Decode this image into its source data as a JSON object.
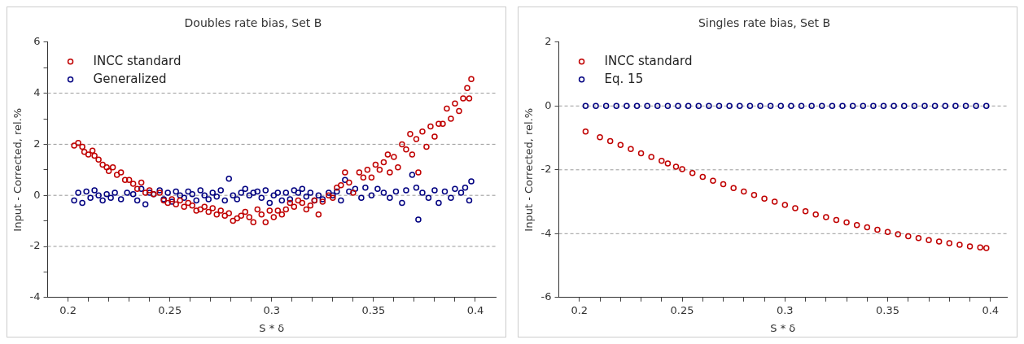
{
  "chart_data": [
    {
      "type": "scatter",
      "title": "Doubles rate bias, Set B",
      "xlabel": "S * δ",
      "ylabel": "Input - Corrected, rel.%",
      "xlim": [
        0.19,
        0.41
      ],
      "ylim": [
        -4,
        6
      ],
      "xticks": [
        0.2,
        {
          "value": 0.21,
          "label": null
        },
        {
          "value": 0.22,
          "label": null
        },
        {
          "value": 0.23,
          "label": null
        },
        {
          "value": 0.24,
          "label": null
        },
        0.25,
        {
          "value": 0.26,
          "label": null
        },
        {
          "value": 0.27,
          "label": null
        },
        {
          "value": 0.28,
          "label": null
        },
        {
          "value": 0.29,
          "label": null
        },
        0.3,
        {
          "value": 0.31,
          "label": null
        },
        {
          "value": 0.32,
          "label": null
        },
        {
          "value": 0.33,
          "label": null
        },
        {
          "value": 0.34,
          "label": null
        },
        0.35,
        {
          "value": 0.36,
          "label": null
        },
        {
          "value": 0.37,
          "label": null
        },
        {
          "value": 0.38,
          "label": null
        },
        {
          "value": 0.39,
          "label": null
        },
        0.4
      ],
      "yticks": [
        -4,
        {
          "value": -3,
          "label": null
        },
        -2,
        {
          "value": -1,
          "label": null
        },
        0,
        {
          "value": 1,
          "label": null
        },
        2,
        {
          "value": 3,
          "label": null
        },
        4,
        {
          "value": 5,
          "label": null
        },
        6
      ],
      "grid": "y",
      "legend": "top left",
      "marker": "circle",
      "series": [
        {
          "name": "INCC standard",
          "color": "#c00000",
          "x": [
            0.203,
            0.205,
            0.207,
            0.208,
            0.21,
            0.212,
            0.213,
            0.215,
            0.217,
            0.219,
            0.22,
            0.222,
            0.224,
            0.226,
            0.228,
            0.23,
            0.232,
            0.234,
            0.236,
            0.238,
            0.24,
            0.242,
            0.245,
            0.247,
            0.249,
            0.251,
            0.253,
            0.255,
            0.257,
            0.259,
            0.261,
            0.263,
            0.265,
            0.267,
            0.269,
            0.271,
            0.273,
            0.275,
            0.277,
            0.279,
            0.281,
            0.283,
            0.285,
            0.287,
            0.289,
            0.291,
            0.293,
            0.295,
            0.297,
            0.299,
            0.301,
            0.303,
            0.305,
            0.307,
            0.309,
            0.311,
            0.313,
            0.315,
            0.317,
            0.319,
            0.321,
            0.323,
            0.325,
            0.328,
            0.33,
            0.332,
            0.334,
            0.336,
            0.338,
            0.34,
            0.343,
            0.345,
            0.347,
            0.349,
            0.351,
            0.353,
            0.355,
            0.357,
            0.358,
            0.36,
            0.362,
            0.364,
            0.366,
            0.368,
            0.369,
            0.371,
            0.372,
            0.374,
            0.376,
            0.378,
            0.38,
            0.382,
            0.384,
            0.386,
            0.388,
            0.39,
            0.392,
            0.394,
            0.396,
            0.397,
            0.398
          ],
          "values": [
            1.95,
            2.05,
            1.9,
            1.7,
            1.6,
            1.75,
            1.55,
            1.4,
            1.2,
            1.1,
            0.95,
            1.1,
            0.8,
            0.9,
            0.6,
            0.6,
            0.45,
            0.25,
            0.5,
            0.1,
            0.2,
            0.05,
            0.1,
            -0.2,
            -0.3,
            -0.15,
            -0.35,
            -0.2,
            -0.45,
            -0.3,
            -0.4,
            -0.6,
            -0.55,
            -0.45,
            -0.65,
            -0.5,
            -0.75,
            -0.6,
            -0.8,
            -0.7,
            -1.0,
            -0.9,
            -0.8,
            -0.65,
            -0.85,
            -1.05,
            -0.55,
            -0.75,
            -1.05,
            -0.6,
            -0.85,
            -0.6,
            -0.75,
            -0.55,
            -0.3,
            -0.45,
            -0.2,
            -0.3,
            -0.55,
            -0.4,
            -0.2,
            -0.75,
            -0.25,
            0,
            -0.1,
            0.3,
            0.4,
            0.9,
            0.5,
            0.1,
            0.9,
            0.7,
            1.0,
            0.7,
            1.2,
            1.0,
            1.3,
            1.6,
            0.9,
            1.5,
            1.1,
            2.0,
            1.8,
            2.4,
            1.6,
            2.2,
            0.9,
            2.5,
            1.9,
            2.7,
            2.3,
            2.8,
            2.8,
            3.4,
            3.0,
            3.6,
            3.3,
            3.8,
            4.2,
            3.8,
            4.55
          ]
        },
        {
          "name": "Generalized",
          "color": "#000080",
          "x": [
            0.203,
            0.205,
            0.207,
            0.209,
            0.211,
            0.213,
            0.215,
            0.217,
            0.219,
            0.221,
            0.223,
            0.226,
            0.229,
            0.232,
            0.234,
            0.236,
            0.238,
            0.24,
            0.242,
            0.245,
            0.247,
            0.249,
            0.251,
            0.253,
            0.255,
            0.257,
            0.259,
            0.261,
            0.263,
            0.265,
            0.267,
            0.269,
            0.271,
            0.273,
            0.275,
            0.277,
            0.279,
            0.281,
            0.283,
            0.285,
            0.287,
            0.289,
            0.291,
            0.293,
            0.295,
            0.297,
            0.299,
            0.301,
            0.303,
            0.305,
            0.307,
            0.309,
            0.311,
            0.313,
            0.315,
            0.317,
            0.319,
            0.321,
            0.323,
            0.325,
            0.328,
            0.33,
            0.332,
            0.334,
            0.336,
            0.338,
            0.341,
            0.344,
            0.346,
            0.349,
            0.352,
            0.355,
            0.358,
            0.361,
            0.364,
            0.366,
            0.369,
            0.371,
            0.372,
            0.374,
            0.377,
            0.38,
            0.382,
            0.385,
            0.388,
            0.39,
            0.393,
            0.395,
            0.397,
            0.398
          ],
          "values": [
            -0.2,
            0.1,
            -0.3,
            0.15,
            -0.1,
            0.2,
            0,
            -0.2,
            0.05,
            -0.1,
            0.1,
            -0.15,
            0.1,
            0.05,
            -0.2,
            0.25,
            -0.35,
            0.1,
            0.05,
            0.2,
            -0.15,
            0.1,
            -0.25,
            0.15,
            0,
            -0.1,
            0.15,
            0.05,
            -0.2,
            0.2,
            0,
            -0.15,
            0.1,
            -0.05,
            0.2,
            -0.2,
            0.65,
            0,
            -0.15,
            0.1,
            0.25,
            0,
            0.1,
            0.15,
            -0.1,
            0.2,
            -0.3,
            0,
            0.1,
            -0.2,
            0.1,
            -0.15,
            0.2,
            0.1,
            0.25,
            -0.05,
            0.1,
            -0.2,
            0,
            -0.15,
            0.1,
            0,
            0.15,
            -0.2,
            0.6,
            0.15,
            0.25,
            -0.1,
            0.3,
            0,
            0.25,
            0.1,
            -0.1,
            0.15,
            -0.3,
            0.2,
            0.8,
            0.3,
            -0.95,
            0.1,
            -0.1,
            0.2,
            -0.3,
            0.15,
            -0.1,
            0.25,
            0.1,
            0.3,
            -0.2,
            0.55
          ]
        }
      ]
    },
    {
      "type": "scatter",
      "title": "Singles rate bias, Set B",
      "xlabel": "S * δ",
      "ylabel": "Input - Corrected, rel.%",
      "xlim": [
        0.19,
        0.408
      ],
      "ylim": [
        -6,
        2
      ],
      "xticks": [
        0.2,
        {
          "value": 0.21,
          "label": null
        },
        {
          "value": 0.22,
          "label": null
        },
        {
          "value": 0.23,
          "label": null
        },
        {
          "value": 0.24,
          "label": null
        },
        0.25,
        {
          "value": 0.26,
          "label": null
        },
        {
          "value": 0.27,
          "label": null
        },
        {
          "value": 0.28,
          "label": null
        },
        {
          "value": 0.29,
          "label": null
        },
        0.3,
        {
          "value": 0.31,
          "label": null
        },
        {
          "value": 0.32,
          "label": null
        },
        {
          "value": 0.33,
          "label": null
        },
        {
          "value": 0.34,
          "label": null
        },
        0.35,
        {
          "value": 0.36,
          "label": null
        },
        {
          "value": 0.37,
          "label": null
        },
        {
          "value": 0.38,
          "label": null
        },
        {
          "value": 0.39,
          "label": null
        },
        0.4
      ],
      "yticks": [
        -6,
        -4,
        -2,
        0,
        2
      ],
      "grid": "y",
      "legend": "top left",
      "marker": "circle",
      "series": [
        {
          "name": "INCC standard",
          "color": "#c00000",
          "x": [
            0.203,
            0.21,
            0.215,
            0.22,
            0.225,
            0.23,
            0.235,
            0.24,
            0.243,
            0.247,
            0.25,
            0.255,
            0.26,
            0.265,
            0.27,
            0.275,
            0.28,
            0.285,
            0.29,
            0.295,
            0.3,
            0.305,
            0.31,
            0.315,
            0.32,
            0.325,
            0.33,
            0.335,
            0.34,
            0.345,
            0.35,
            0.355,
            0.36,
            0.365,
            0.37,
            0.375,
            0.38,
            0.385,
            0.39,
            0.395,
            0.398
          ],
          "values": [
            -0.8,
            -0.98,
            -1.1,
            -1.22,
            -1.35,
            -1.48,
            -1.6,
            -1.72,
            -1.8,
            -1.9,
            -1.98,
            -2.1,
            -2.22,
            -2.34,
            -2.45,
            -2.57,
            -2.68,
            -2.79,
            -2.9,
            -3.0,
            -3.1,
            -3.2,
            -3.3,
            -3.4,
            -3.48,
            -3.57,
            -3.65,
            -3.73,
            -3.8,
            -3.88,
            -3.95,
            -4.02,
            -4.08,
            -4.14,
            -4.2,
            -4.25,
            -4.3,
            -4.35,
            -4.4,
            -4.43,
            -4.45
          ]
        },
        {
          "name": "Eq. 15",
          "color": "#000080",
          "x": [
            0.203,
            0.208,
            0.213,
            0.218,
            0.223,
            0.228,
            0.233,
            0.238,
            0.243,
            0.248,
            0.253,
            0.258,
            0.263,
            0.268,
            0.273,
            0.278,
            0.283,
            0.288,
            0.293,
            0.298,
            0.303,
            0.308,
            0.313,
            0.318,
            0.323,
            0.328,
            0.333,
            0.338,
            0.343,
            0.348,
            0.353,
            0.358,
            0.363,
            0.368,
            0.373,
            0.378,
            0.383,
            0.388,
            0.393,
            0.398
          ],
          "values": [
            0,
            0,
            0,
            0,
            0,
            0,
            0,
            0,
            0,
            0,
            0,
            0,
            0,
            0,
            0,
            0,
            0,
            0,
            0,
            0,
            0,
            0,
            0,
            0,
            0,
            0,
            0,
            0,
            0,
            0,
            0,
            0,
            0,
            0,
            0,
            0,
            0,
            0,
            0,
            0
          ]
        }
      ]
    }
  ]
}
